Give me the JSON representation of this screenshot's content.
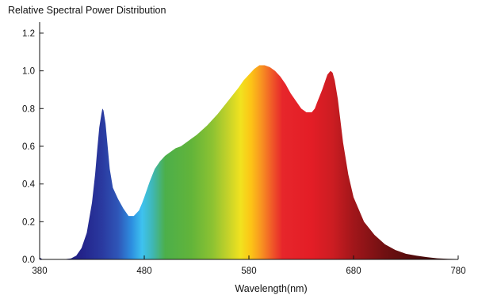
{
  "chart_data": {
    "type": "area",
    "title": "Relative Spectral Power Distribution",
    "xlabel": "Wavelength(nm)",
    "ylabel": "",
    "xlim": [
      380,
      780
    ],
    "ylim": [
      0,
      1.25
    ],
    "xticks": [
      380,
      480,
      580,
      680,
      780
    ],
    "yticks": [
      0.0,
      0.2,
      0.4,
      0.6,
      0.8,
      1.0,
      1.2
    ],
    "ytick_labels": [
      "0.0",
      "0.2",
      "0.4",
      "0.6",
      "0.8",
      "1.0",
      "1.2"
    ],
    "grid": false,
    "legend": "none",
    "fill": "wavelength-gradient",
    "series": [
      {
        "x": [
          380,
          383,
          388,
          395,
          402,
          410,
          415,
          420,
          425,
          430,
          433,
          435,
          437,
          439,
          440,
          441,
          443,
          445,
          447,
          450,
          455,
          460,
          465,
          470,
          475,
          478,
          480,
          485,
          490,
          495,
          500,
          505,
          510,
          515,
          520,
          525,
          530,
          540,
          550,
          560,
          570,
          575,
          580,
          585,
          590,
          595,
          600,
          605,
          610,
          615,
          620,
          625,
          630,
          635,
          640,
          643,
          645,
          650,
          655,
          658,
          660,
          662,
          665,
          670,
          675,
          680,
          690,
          700,
          710,
          720,
          730,
          740,
          750,
          760,
          770,
          778
        ],
        "y": [
          0.01,
          0.0,
          0.0,
          0.0,
          0.0,
          0.005,
          0.02,
          0.06,
          0.14,
          0.3,
          0.45,
          0.58,
          0.7,
          0.77,
          0.8,
          0.79,
          0.72,
          0.6,
          0.48,
          0.38,
          0.32,
          0.27,
          0.23,
          0.23,
          0.26,
          0.3,
          0.33,
          0.41,
          0.48,
          0.52,
          0.55,
          0.57,
          0.59,
          0.6,
          0.62,
          0.64,
          0.66,
          0.71,
          0.77,
          0.84,
          0.91,
          0.95,
          0.98,
          1.01,
          1.03,
          1.03,
          1.02,
          1.0,
          0.97,
          0.93,
          0.88,
          0.84,
          0.8,
          0.78,
          0.78,
          0.8,
          0.83,
          0.9,
          0.98,
          1.0,
          0.99,
          0.95,
          0.85,
          0.62,
          0.45,
          0.33,
          0.2,
          0.13,
          0.08,
          0.05,
          0.03,
          0.02,
          0.012,
          0.006,
          0.003,
          0.002
        ]
      }
    ]
  }
}
